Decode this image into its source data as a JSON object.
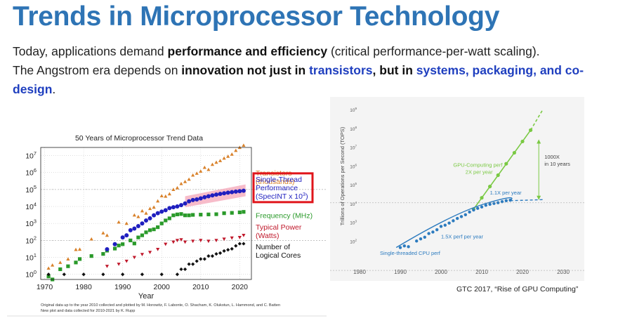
{
  "slide": {
    "title": "Trends in Microprocessor Technology",
    "line1": {
      "before": "Today, applications demand ",
      "bold": "performance and efficiency",
      "after": " (critical performance-per-watt scaling)."
    },
    "line2": {
      "before": "The Angstrom era depends on ",
      "bold1": "innovation not just in ",
      "hl1": "transistors",
      "bold2": ", but in ",
      "hl2": "systems, packaging, and co-design",
      "after": "."
    }
  },
  "colors": {
    "title": "#2e74b5",
    "highlight": "#1f3fbf",
    "transistors": "#d9822b",
    "single_thread": "#1f1fbf",
    "frequency": "#2a9a2a",
    "power": "#c0182b",
    "cores": "#111111",
    "band": "#f4a6b8",
    "gpu": "#7ac943",
    "cpu": "#2c7bbf",
    "callout_box": "#e0151b"
  },
  "chart_data": [
    {
      "type": "scatter",
      "title": "50 Years of Microprocessor Trend Data",
      "xlabel": "Year",
      "ylabel": "",
      "yscale": "log",
      "xlim": [
        1969,
        2023
      ],
      "ylim": [
        0.5,
        30000000
      ],
      "x_ticks": [
        "1970",
        "1980",
        "1990",
        "2000",
        "2010",
        "2020"
      ],
      "y_ticks": [
        {
          "base": "10",
          "exp": "7"
        },
        {
          "base": "10",
          "exp": "6"
        },
        {
          "base": "10",
          "exp": "5"
        },
        {
          "base": "10",
          "exp": "4"
        },
        {
          "base": "10",
          "exp": "3"
        },
        {
          "base": "10",
          "exp": "2"
        },
        {
          "base": "10",
          "exp": "1"
        },
        {
          "base": "10",
          "exp": "0"
        }
      ],
      "series": [
        {
          "name": "Transistors (thousands)",
          "label_lines": [
            "Transistors",
            "(thousands)"
          ],
          "marker": "triangle-up",
          "color": "#d9822b",
          "points": [
            [
              1971,
              2.3
            ],
            [
              1972,
              3.5
            ],
            [
              1974,
              5
            ],
            [
              1976,
              8
            ],
            [
              1978,
              29
            ],
            [
              1979,
              30
            ],
            [
              1982,
              120
            ],
            [
              1985,
              275
            ],
            [
              1986,
              200
            ],
            [
              1989,
              1200
            ],
            [
              1991,
              1000
            ],
            [
              1993,
              3100
            ],
            [
              1994,
              2500
            ],
            [
              1995,
              5500
            ],
            [
              1996,
              4000
            ],
            [
              1997,
              7500
            ],
            [
              1998,
              9000
            ],
            [
              1999,
              21000
            ],
            [
              2000,
              42000
            ],
            [
              2001,
              40000
            ],
            [
              2002,
              55000
            ],
            [
              2003,
              100000
            ],
            [
              2004,
              125000
            ],
            [
              2005,
              220000
            ],
            [
              2006,
              290000
            ],
            [
              2007,
              400000
            ],
            [
              2008,
              700000
            ],
            [
              2009,
              900000
            ],
            [
              2010,
              1200000
            ],
            [
              2011,
              2000000
            ],
            [
              2012,
              1500000
            ],
            [
              2013,
              3000000
            ],
            [
              2014,
              4000000
            ],
            [
              2015,
              5000000
            ],
            [
              2016,
              7000000
            ],
            [
              2017,
              9000000
            ],
            [
              2018,
              12000000
            ],
            [
              2019,
              20000000
            ],
            [
              2020,
              30000000
            ],
            [
              2021,
              40000000
            ]
          ]
        },
        {
          "name": "Single-Thread Performance (SpecINT x 10^3)",
          "label_lines": [
            "Single-Thread",
            "Performance",
            "(SpecINT x 10",
            "3",
            ")"
          ],
          "marker": "circle",
          "color": "#1f1fbf",
          "points": [
            [
              1986,
              30
            ],
            [
              1988,
              60
            ],
            [
              1990,
              150
            ],
            [
              1991,
              200
            ],
            [
              1992,
              400
            ],
            [
              1993,
              500
            ],
            [
              1994,
              700
            ],
            [
              1995,
              1000
            ],
            [
              1996,
              1500
            ],
            [
              1997,
              2000
            ],
            [
              1998,
              3000
            ],
            [
              1999,
              4000
            ],
            [
              2000,
              5000
            ],
            [
              2001,
              6000
            ],
            [
              2002,
              8000
            ],
            [
              2003,
              9000
            ],
            [
              2004,
              10000
            ],
            [
              2005,
              12000
            ],
            [
              2006,
              15000
            ],
            [
              2007,
              20000
            ],
            [
              2008,
              24000
            ],
            [
              2009,
              26000
            ],
            [
              2010,
              30000
            ],
            [
              2011,
              35000
            ],
            [
              2012,
              40000
            ],
            [
              2013,
              45000
            ],
            [
              2014,
              50000
            ],
            [
              2015,
              55000
            ],
            [
              2016,
              60000
            ],
            [
              2017,
              65000
            ],
            [
              2018,
              70000
            ],
            [
              2019,
              75000
            ],
            [
              2020,
              80000
            ],
            [
              2021,
              85000
            ]
          ]
        },
        {
          "name": "Frequency (MHz)",
          "label_lines": [
            "Frequency (MHz)"
          ],
          "marker": "square",
          "color": "#2a9a2a",
          "points": [
            [
              1971,
              0.75
            ],
            [
              1972,
              0.5
            ],
            [
              1974,
              2
            ],
            [
              1976,
              3
            ],
            [
              1978,
              5
            ],
            [
              1979,
              8
            ],
            [
              1982,
              12
            ],
            [
              1985,
              16
            ],
            [
              1986,
              25
            ],
            [
              1988,
              33
            ],
            [
              1989,
              50
            ],
            [
              1990,
              60
            ],
            [
              1992,
              100
            ],
            [
              1993,
              66
            ],
            [
              1994,
              150
            ],
            [
              1995,
              200
            ],
            [
              1996,
              300
            ],
            [
              1997,
              400
            ],
            [
              1998,
              450
            ],
            [
              1999,
              600
            ],
            [
              2000,
              1000
            ],
            [
              2001,
              1500
            ],
            [
              2002,
              2000
            ],
            [
              2003,
              3000
            ],
            [
              2004,
              3400
            ],
            [
              2005,
              3600
            ],
            [
              2006,
              3000
            ],
            [
              2007,
              3000
            ],
            [
              2008,
              3200
            ],
            [
              2010,
              3300
            ],
            [
              2012,
              3400
            ],
            [
              2014,
              3500
            ],
            [
              2016,
              4000
            ],
            [
              2018,
              4200
            ],
            [
              2020,
              4500
            ],
            [
              2021,
              4800
            ]
          ]
        },
        {
          "name": "Typical Power (Watts)",
          "label_lines": [
            "Typical Power",
            "(Watts)"
          ],
          "marker": "triangle-down",
          "color": "#c0182b",
          "points": [
            [
              1986,
              3
            ],
            [
              1989,
              4
            ],
            [
              1991,
              6
            ],
            [
              1993,
              10
            ],
            [
              1995,
              15
            ],
            [
              1997,
              20
            ],
            [
              1999,
              30
            ],
            [
              2001,
              60
            ],
            [
              2003,
              80
            ],
            [
              2004,
              100
            ],
            [
              2005,
              110
            ],
            [
              2006,
              80
            ],
            [
              2008,
              90
            ],
            [
              2010,
              100
            ],
            [
              2012,
              90
            ],
            [
              2014,
              100
            ],
            [
              2016,
              120
            ],
            [
              2018,
              140
            ],
            [
              2020,
              150
            ],
            [
              2021,
              200
            ]
          ]
        },
        {
          "name": "Number of Logical Cores",
          "label_lines": [
            "Number of",
            "Logical Cores"
          ],
          "marker": "diamond",
          "color": "#111111",
          "points": [
            [
              1971,
              1
            ],
            [
              1975,
              1
            ],
            [
              1980,
              1
            ],
            [
              1985,
              1
            ],
            [
              1990,
              1
            ],
            [
              1995,
              1
            ],
            [
              2000,
              1
            ],
            [
              2004,
              1
            ],
            [
              2005,
              2
            ],
            [
              2006,
              2
            ],
            [
              2007,
              4
            ],
            [
              2008,
              4
            ],
            [
              2009,
              6
            ],
            [
              2010,
              8
            ],
            [
              2011,
              8
            ],
            [
              2012,
              12
            ],
            [
              2013,
              12
            ],
            [
              2014,
              16
            ],
            [
              2015,
              18
            ],
            [
              2016,
              24
            ],
            [
              2017,
              28
            ],
            [
              2018,
              32
            ],
            [
              2019,
              48
            ],
            [
              2020,
              64
            ],
            [
              2021,
              64
            ]
          ]
        }
      ],
      "footnote": [
        "Original data up to the year 2010 collected and plotted by M. Horowitz, F. Labonte, O. Shacham, K. Olukotun, L. Hammond, and C. Batten",
        "New plot and data collected for 2010-2021 by K. Rupp"
      ]
    },
    {
      "type": "scatter",
      "title": "",
      "xlabel": "",
      "ylabel": "Trillions of Operations per Second (TOPS)",
      "yscale": "log",
      "xlim": [
        1980,
        2030
      ],
      "ylim": [
        10,
        1000000000
      ],
      "x_ticks": [
        "1980",
        "1990",
        "2000",
        "2010",
        "2020",
        "2030"
      ],
      "y_ticks": [
        {
          "base": "10",
          "exp": "9"
        },
        {
          "base": "10",
          "exp": "8"
        },
        {
          "base": "10",
          "exp": "7"
        },
        {
          "base": "10",
          "exp": "6"
        },
        {
          "base": "10",
          "exp": "5"
        },
        {
          "base": "10",
          "exp": "4"
        },
        {
          "base": "10",
          "exp": "3"
        },
        {
          "base": "10",
          "exp": "2"
        }
      ],
      "series": [
        {
          "name": "GPU-Computing perf 2X per year",
          "label_lines": [
            "GPU-Computing perf",
            "2X per year"
          ],
          "color": "#7ac943",
          "points": [
            [
              2008,
              5000
            ],
            [
              2010,
              20000
            ],
            [
              2012,
              80000
            ],
            [
              2014,
              320000
            ],
            [
              2016,
              1300000
            ],
            [
              2018,
              5000000
            ],
            [
              2020,
              20000000
            ],
            [
              2022,
              80000000
            ]
          ]
        },
        {
          "name": "Single-threaded CPU perf",
          "label_lines": [
            "Single-threaded CPU perf"
          ],
          "color": "#2c7bbf",
          "points": [
            [
              1990,
              45
            ],
            [
              1991,
              55
            ],
            [
              1992,
              50
            ],
            [
              1994,
              100
            ],
            [
              1995,
              130
            ],
            [
              1996,
              160
            ],
            [
              1997,
              250
            ],
            [
              1998,
              300
            ],
            [
              1999,
              400
            ],
            [
              2000,
              600
            ],
            [
              2001,
              700
            ],
            [
              2002,
              900
            ],
            [
              2003,
              1200
            ],
            [
              2004,
              1600
            ],
            [
              2005,
              2000
            ],
            [
              2006,
              2500
            ],
            [
              2007,
              3500
            ],
            [
              2008,
              4500
            ],
            [
              2009,
              5500
            ],
            [
              2010,
              6500
            ],
            [
              2011,
              8000
            ],
            [
              2012,
              9000
            ],
            [
              2013,
              10000
            ],
            [
              2014,
              11000
            ],
            [
              2015,
              12500
            ],
            [
              2016,
              14000
            ],
            [
              2017,
              15000
            ]
          ]
        }
      ],
      "annotations": {
        "cpu_early": "1.5X perf per year",
        "cpu_late": "1.1X per year",
        "gap_lines": [
          "1000X",
          "in 10 years"
        ]
      }
    }
  ],
  "caption": "GTC 2017, “Rise of GPU Computing”"
}
